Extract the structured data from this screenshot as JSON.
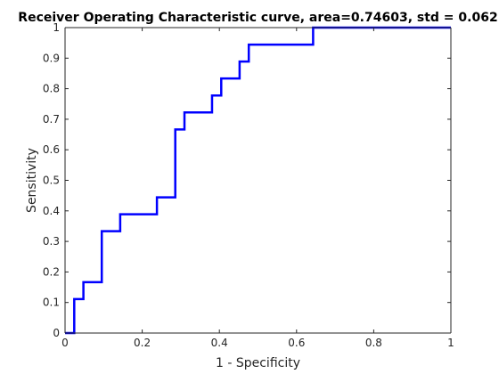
{
  "chart_data": {
    "type": "line",
    "title": "Receiver Operating Characteristic curve, area=0.74603, std = 0.062",
    "xlabel": "1 - Specificity",
    "ylabel": "Sensitivity",
    "xlim": [
      0,
      1
    ],
    "ylim": [
      0,
      1
    ],
    "grid": false,
    "x_ticks": [
      0,
      0.2,
      0.4,
      0.6,
      0.8,
      1
    ],
    "x_tick_labels": [
      "0",
      "0.2",
      "0.4",
      "0.6",
      "0.8",
      "1"
    ],
    "y_ticks": [
      0,
      0.1,
      0.2,
      0.3,
      0.4,
      0.5,
      0.6,
      0.7,
      0.8,
      0.9,
      1
    ],
    "y_tick_labels": [
      "0",
      "0.1",
      "0.2",
      "0.3",
      "0.4",
      "0.5",
      "0.6",
      "0.7",
      "0.8",
      "0.9",
      "1"
    ],
    "series": [
      {
        "color": "#0000ff",
        "x": [
          0,
          0.0238,
          0.0238,
          0.0476,
          0.0476,
          0.0952,
          0.0952,
          0.1429,
          0.1429,
          0.2381,
          0.2381,
          0.2857,
          0.2857,
          0.3095,
          0.3095,
          0.381,
          0.381,
          0.4048,
          0.4048,
          0.4524,
          0.4524,
          0.4762,
          0.4762,
          0.6429,
          0.6429,
          1
        ],
        "y": [
          0,
          0,
          0.1111,
          0.1111,
          0.1667,
          0.1667,
          0.3333,
          0.3333,
          0.3889,
          0.3889,
          0.4444,
          0.4444,
          0.6667,
          0.6667,
          0.7222,
          0.7222,
          0.7778,
          0.7778,
          0.8333,
          0.8333,
          0.8889,
          0.8889,
          0.9444,
          0.9444,
          1,
          1
        ]
      }
    ]
  }
}
